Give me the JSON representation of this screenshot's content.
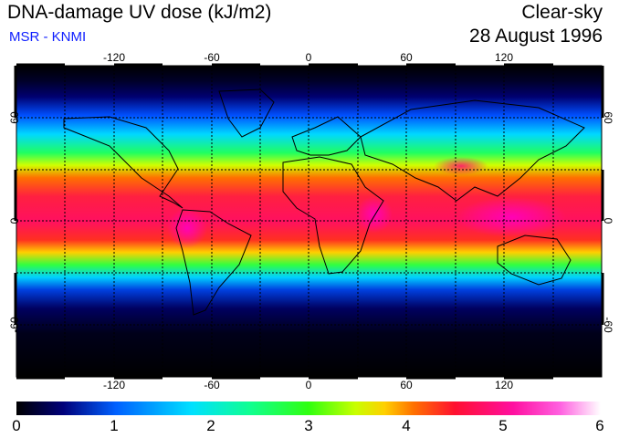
{
  "header": {
    "title": "DNA-damage UV dose (kJ/m2)",
    "subtitle": "MSR - KNMI",
    "condition": "Clear-sky",
    "date": "28 August 1996"
  },
  "axes": {
    "lon_ticks_top": [
      "-120",
      "-60",
      "0",
      "60",
      "120"
    ],
    "lon_ticks_bottom": [
      "-120",
      "-60",
      "0",
      "60",
      "120"
    ],
    "lat_ticks_left": [
      "60",
      "0",
      "-60"
    ],
    "lat_ticks_right": [
      "60",
      "0",
      "-60"
    ]
  },
  "colorbar": {
    "labels": [
      "0",
      "1",
      "2",
      "3",
      "4",
      "5",
      "6"
    ],
    "min": 0,
    "max": 6,
    "colors": [
      "#000000",
      "#00007a",
      "#0060ff",
      "#00e0ff",
      "#10ff90",
      "#30ff10",
      "#c8ff00",
      "#ffd000",
      "#ff7000",
      "#ff1030",
      "#ff10a0",
      "#ff60e0",
      "#ffffff"
    ]
  }
}
